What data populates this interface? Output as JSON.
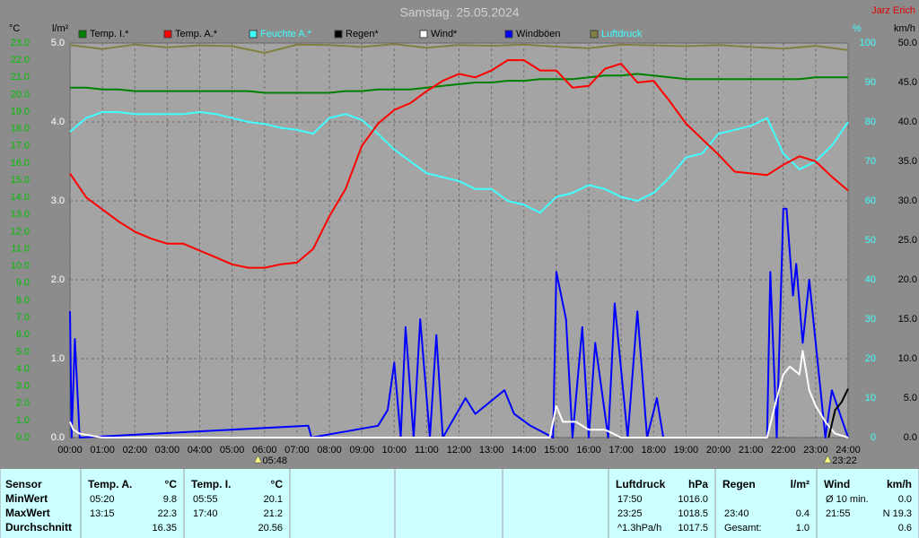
{
  "chart_data": {
    "type": "line",
    "title": "Samstag. 25.05.2024",
    "author": "Jarz Erich",
    "xlim": [
      0,
      24
    ],
    "xticks": [
      {
        "value": 0,
        "label": "00:00"
      },
      {
        "value": 1,
        "label": "01:00"
      },
      {
        "value": 2,
        "label": "02:00"
      },
      {
        "value": 3,
        "label": "03:00"
      },
      {
        "value": 4,
        "label": "04:00"
      },
      {
        "value": 5,
        "label": "05:00"
      },
      {
        "value": 6,
        "label": "06:00"
      },
      {
        "value": 7,
        "label": "07:00"
      },
      {
        "value": 8,
        "label": "08:00"
      },
      {
        "value": 9,
        "label": "09:00"
      },
      {
        "value": 10,
        "label": "10:00"
      },
      {
        "value": 11,
        "label": "11:00"
      },
      {
        "value": 12,
        "label": "12:00"
      },
      {
        "value": 13,
        "label": "13:00"
      },
      {
        "value": 14,
        "label": "14:00"
      },
      {
        "value": 15,
        "label": "15:00"
      },
      {
        "value": 16,
        "label": "16:00"
      },
      {
        "value": 17,
        "label": "17:00"
      },
      {
        "value": 18,
        "label": "18:00"
      },
      {
        "value": 19,
        "label": "19:00"
      },
      {
        "value": 20,
        "label": "20:00"
      },
      {
        "value": 21,
        "label": "21:00"
      },
      {
        "value": 22,
        "label": "22:00"
      },
      {
        "value": 23,
        "label": "23:00"
      },
      {
        "value": 24,
        "label": "24:00"
      }
    ],
    "ylabel": "°C",
    "ylim": [
      0,
      23
    ],
    "ycolor": "#00c000",
    "yticks": [
      {
        "value": 0,
        "label": "0.0"
      },
      {
        "value": 1,
        "label": "1.0"
      },
      {
        "value": 2,
        "label": "2.0"
      },
      {
        "value": 3,
        "label": "3.0"
      },
      {
        "value": 4,
        "label": "4.0"
      },
      {
        "value": 5,
        "label": "5.0"
      },
      {
        "value": 6,
        "label": "6.0"
      },
      {
        "value": 7,
        "label": "7.0"
      },
      {
        "value": 8,
        "label": "8.0"
      },
      {
        "value": 9,
        "label": "9.0"
      },
      {
        "value": 10,
        "label": "10.0"
      },
      {
        "value": 11,
        "label": "11.0"
      },
      {
        "value": 12,
        "label": "12.0"
      },
      {
        "value": 13,
        "label": "13.0"
      },
      {
        "value": 14,
        "label": "14.0"
      },
      {
        "value": 15,
        "label": "15.0"
      },
      {
        "value": 16,
        "label": "16.0"
      },
      {
        "value": 17,
        "label": "17.0"
      },
      {
        "value": 18,
        "label": "18.0"
      },
      {
        "value": 19,
        "label": "19.0"
      },
      {
        "value": 20,
        "label": "20.0"
      },
      {
        "value": 21,
        "label": "21.0"
      },
      {
        "value": 22,
        "label": "22.0"
      },
      {
        "value": 23,
        "label": "23.0"
      }
    ],
    "y2label": "l/m²",
    "y2lim": [
      0,
      5
    ],
    "y2color": "#ffffff",
    "y2ticks": [
      {
        "value": 0,
        "label": "0.0"
      },
      {
        "value": 1,
        "label": "1.0"
      },
      {
        "value": 2,
        "label": "2.0"
      },
      {
        "value": 3,
        "label": "3.0"
      },
      {
        "value": 4,
        "label": "4.0"
      },
      {
        "value": 5,
        "label": "5.0"
      }
    ],
    "y3label": "%",
    "y3lim": [
      0,
      100
    ],
    "y3color": "#40ffff",
    "y3ticks": [
      0,
      10,
      20,
      30,
      40,
      50,
      60,
      70,
      80,
      90,
      100
    ],
    "y4label": "km/h",
    "y4lim": [
      0,
      50
    ],
    "y4color": "#000000",
    "y4ticks": [
      {
        "value": 0,
        "label": "0.0"
      },
      {
        "value": 5,
        "label": "5.0"
      },
      {
        "value": 10,
        "label": "10.0"
      },
      {
        "value": 15,
        "label": "15.0"
      },
      {
        "value": 20,
        "label": "20.0"
      },
      {
        "value": 25,
        "label": "25.0"
      },
      {
        "value": 30,
        "label": "30.0"
      },
      {
        "value": 35,
        "label": "35.0"
      },
      {
        "value": 40,
        "label": "40.0"
      },
      {
        "value": 45,
        "label": "45.0"
      },
      {
        "value": 50,
        "label": "50.0"
      }
    ],
    "grid": true,
    "x": [
      0,
      0.5,
      1,
      1.5,
      2,
      2.5,
      3,
      3.5,
      4,
      4.5,
      5,
      5.5,
      6,
      6.5,
      7,
      7.5,
      8,
      8.5,
      9,
      9.5,
      10,
      10.5,
      11,
      11.5,
      12,
      12.5,
      13,
      13.5,
      14,
      14.5,
      15,
      15.5,
      16,
      16.5,
      17,
      17.5,
      18,
      18.5,
      19,
      19.5,
      20,
      20.5,
      21,
      21.5,
      22,
      22.5,
      23,
      23.5,
      24
    ],
    "series": [
      {
        "name": "Temp. I.*",
        "color": "#008000",
        "label_color": "#000000",
        "axis": "y",
        "values": [
          20.4,
          20.4,
          20.3,
          20.3,
          20.2,
          20.2,
          20.2,
          20.2,
          20.2,
          20.2,
          20.2,
          20.2,
          20.1,
          20.1,
          20.1,
          20.1,
          20.1,
          20.2,
          20.2,
          20.3,
          20.3,
          20.3,
          20.4,
          20.5,
          20.6,
          20.7,
          20.7,
          20.8,
          20.8,
          20.9,
          20.9,
          20.9,
          21.0,
          21.1,
          21.1,
          21.2,
          21.1,
          21.0,
          20.9,
          20.9,
          20.9,
          20.9,
          20.9,
          20.9,
          20.9,
          20.9,
          21.0,
          21.0,
          21.0
        ]
      },
      {
        "name": "Temp. A.*",
        "color": "#ff0000",
        "label_color": "#000000",
        "axis": "y",
        "values": [
          15.4,
          14.0,
          13.3,
          12.6,
          12.0,
          11.6,
          11.3,
          11.3,
          10.9,
          10.5,
          10.1,
          9.9,
          9.9,
          10.1,
          10.2,
          11.0,
          12.9,
          14.5,
          17.0,
          18.3,
          19.1,
          19.5,
          20.2,
          20.8,
          21.2,
          21.0,
          21.4,
          22.0,
          22.0,
          21.4,
          21.4,
          20.4,
          20.5,
          21.5,
          21.8,
          20.7,
          20.8,
          19.6,
          18.3,
          17.4,
          16.5,
          15.5,
          15.4,
          15.3,
          15.9,
          16.4,
          16.1,
          15.2,
          14.4
        ]
      },
      {
        "name": "Feuchte A.*",
        "color": "#40ffff",
        "label_color": "#40ffff",
        "axis": "y3",
        "values": [
          77.5,
          81,
          82.5,
          82.5,
          82,
          82,
          82,
          82,
          82.5,
          82,
          81,
          80,
          79.5,
          78.5,
          78,
          77,
          81,
          82,
          80.5,
          77,
          73,
          70,
          67,
          66,
          65,
          63,
          63,
          60,
          59,
          57,
          61,
          62,
          64,
          63,
          61,
          60,
          62,
          66,
          71,
          72,
          77,
          78,
          79,
          81,
          72,
          68,
          70,
          74,
          80
        ]
      },
      {
        "name": "Regen*",
        "color": "#000000",
        "label_color": "#000000",
        "axis": "y2",
        "x": [
          23.4,
          23.6,
          23.8,
          24.0
        ],
        "values": [
          0,
          0.35,
          0.45,
          0.62
        ]
      },
      {
        "name": "Wind*",
        "color": "#ffffff",
        "label_color": "#000000",
        "axis": "y4",
        "x": [
          0,
          0.1,
          0.3,
          1,
          14.8,
          15.0,
          15.2,
          15.6,
          16,
          16.5,
          17,
          21.5,
          21.8,
          22.0,
          22.2,
          22.5,
          22.6,
          22.8,
          23.0,
          23.3,
          23.6,
          24
        ],
        "values": [
          2,
          1,
          0.5,
          0,
          0,
          4,
          2,
          2,
          1,
          1,
          0,
          0,
          5,
          8,
          9,
          8,
          11,
          6,
          4,
          2,
          0.5,
          0
        ]
      },
      {
        "name": "Windböen",
        "color": "#0000ff",
        "label_color": "#000000",
        "axis": "y4",
        "x": [
          0,
          0.05,
          0.15,
          0.3,
          7.35,
          7.45,
          9.5,
          9.8,
          10.0,
          10.2,
          10.35,
          10.6,
          10.8,
          11.1,
          11.3,
          11.5,
          12.2,
          12.5,
          13.4,
          13.7,
          14.2,
          14.9,
          15.0,
          15.3,
          15.5,
          15.8,
          16.0,
          16.2,
          16.6,
          16.8,
          17.2,
          17.5,
          17.8,
          18.1,
          18.3,
          21.5,
          21.6,
          21.8,
          22.0,
          22.1,
          22.3,
          22.4,
          22.6,
          22.8,
          23.3,
          23.5,
          24.0
        ],
        "values": [
          16,
          0,
          12.5,
          0,
          1.5,
          0,
          1.5,
          3.5,
          9.5,
          0,
          14,
          0,
          15,
          0,
          13,
          0,
          5,
          3,
          6,
          3,
          1.5,
          0,
          21,
          15,
          0,
          14,
          0,
          12,
          0,
          17,
          0,
          16,
          0,
          5,
          0,
          0,
          21,
          0,
          29,
          29,
          18,
          22,
          12,
          20,
          0,
          6,
          0
        ]
      },
      {
        "name": "Luftdruck",
        "color": "#808040",
        "label_color": "#40ffff",
        "axis": "y3",
        "x": [
          0,
          1,
          2,
          3,
          4,
          5,
          6,
          7,
          8,
          9,
          10,
          11,
          12,
          13,
          14,
          15,
          16,
          17,
          18,
          19,
          20,
          21,
          22,
          23,
          24
        ],
        "values": [
          99.5,
          98.5,
          99.6,
          98.9,
          99.4,
          99.2,
          97.5,
          99.6,
          99.5,
          99.0,
          99.7,
          98.8,
          99.5,
          99.3,
          99.6,
          99.1,
          98.7,
          99.6,
          99.4,
          99.2,
          99.5,
          99.0,
          98.6,
          99.3,
          98.2
        ]
      }
    ],
    "annotations": [
      {
        "text": "05:48",
        "x": 5.8
      },
      {
        "text": "23:22",
        "x": 23.37
      }
    ]
  },
  "stats": {
    "row_labels": [
      "Sensor",
      "MinWert",
      "MaxWert",
      "Durchschnitt"
    ],
    "groups": [
      {
        "header": "Temp. A.",
        "unit": "°C",
        "cells": [
          [
            "05:20",
            "9.8"
          ],
          [
            "13:15",
            "22.3"
          ],
          [
            null,
            "16.35"
          ]
        ]
      },
      {
        "header": "Temp. I.",
        "unit": "°C",
        "cells": [
          [
            "05:55",
            "20.1"
          ],
          [
            "17:40",
            "21.2"
          ],
          [
            null,
            "20.56"
          ]
        ]
      },
      {
        "header": "Luftdruck",
        "unit": "hPa",
        "cells": [
          [
            "17:50",
            "1016.0"
          ],
          [
            "23:25",
            "1018.5"
          ],
          [
            "^1.3hPa/h",
            "1017.5"
          ]
        ]
      },
      {
        "header": "Regen",
        "unit": "l/m²",
        "cells": [
          [
            null,
            null
          ],
          [
            "23:40",
            "0.4"
          ],
          [
            "Gesamt:",
            "1.0"
          ]
        ]
      },
      {
        "header": "Wind",
        "unit": "km/h",
        "cells": [
          [
            "Ø 10 min.",
            "0.0"
          ],
          [
            "21:55",
            "N 19.3"
          ],
          [
            null,
            "0.6"
          ]
        ]
      }
    ]
  }
}
